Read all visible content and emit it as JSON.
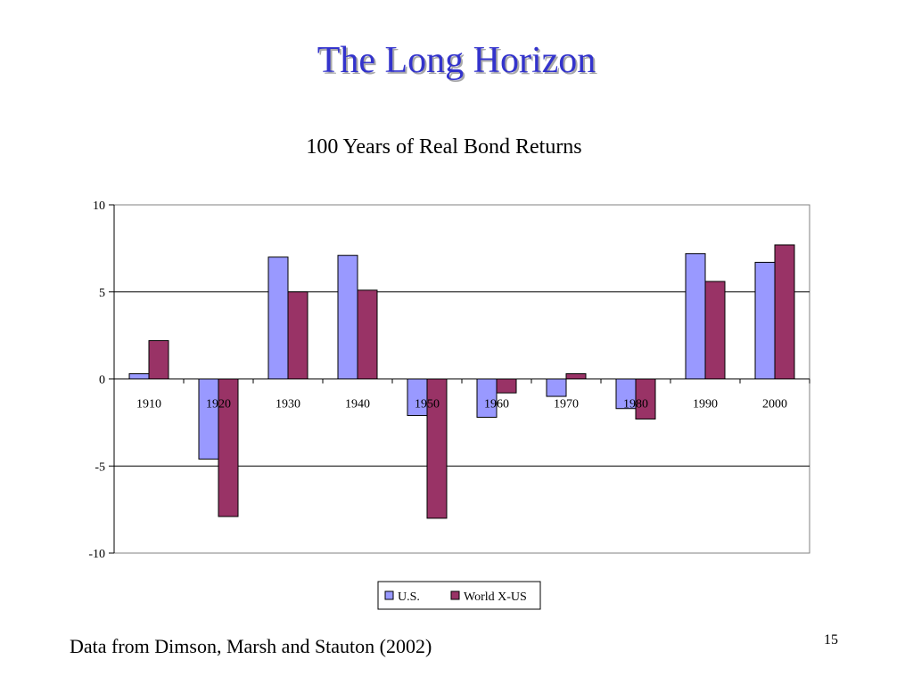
{
  "slide": {
    "title": "The Long Horizon",
    "footer": "Data from Dimson, Marsh and Stauton (2002)",
    "page_number": "15"
  },
  "chart_data": {
    "type": "bar",
    "title": "100 Years of Real Bond Returns",
    "xlabel": "",
    "ylabel": "",
    "categories": [
      "1910",
      "1920",
      "1930",
      "1940",
      "1950",
      "1960",
      "1970",
      "1980",
      "1990",
      "2000"
    ],
    "series": [
      {
        "name": "U.S.",
        "color": "#9999ff",
        "values": [
          0.3,
          -4.6,
          7.0,
          7.1,
          -2.1,
          -2.2,
          -1.0,
          -1.7,
          7.2,
          6.7
        ]
      },
      {
        "name": "World X-US",
        "color": "#993366",
        "values": [
          2.2,
          -7.9,
          5.0,
          5.1,
          -8.0,
          -0.8,
          0.3,
          -2.3,
          5.6,
          7.7
        ]
      }
    ],
    "ylim": [
      -10,
      10
    ],
    "yticks": [
      10,
      5,
      0,
      -5,
      -10
    ],
    "ytick_labels": [
      "10",
      "5",
      "0",
      "-5",
      "-10"
    ],
    "grid": true,
    "legend": "bottom-center"
  }
}
